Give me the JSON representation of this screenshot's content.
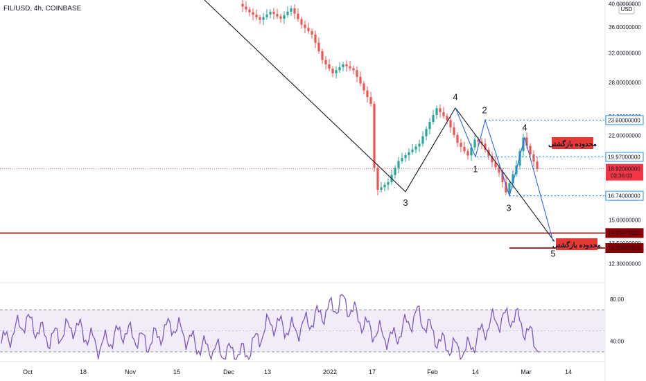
{
  "header": {
    "title": "FIL/USD, 4h, COINBASE",
    "currency_badge": "USD"
  },
  "colors": {
    "up": "#26a69a",
    "down": "#ef5350",
    "wave_black": "#131722",
    "wave_blue": "#2962ff",
    "level_dotted": "#2196f3",
    "red_level": "#8b0000",
    "current_price_bg": "#f23645",
    "rsi_line": "#7e57c2",
    "rsi_band": "#ede7f6"
  },
  "chart_data": {
    "type": "candlestick",
    "symbol": "FIL/USD",
    "timeframe": "4h",
    "exchange": "COINBASE",
    "y_scale": "log",
    "ylim": [
      11.5,
      40.2
    ],
    "x_ticks": [
      "Oct",
      "18",
      "Nov",
      "15",
      "Dec",
      "13",
      "2022",
      "17",
      "Feb",
      "14",
      "Mar",
      "14"
    ],
    "price_axis_labels": [
      "40.00000000",
      "36.00000000",
      "32.00000000",
      "28.00000000",
      "24.00000000",
      "22.00000000",
      "15.00000000",
      "13.50000000",
      "12.30000000"
    ],
    "price_anchors": [
      {
        "i": 0,
        "p": 40.0
      },
      {
        "i": 3,
        "p": 38.5
      },
      {
        "i": 6,
        "p": 37.2
      },
      {
        "i": 9,
        "p": 38.6
      },
      {
        "i": 12,
        "p": 37.4
      },
      {
        "i": 15,
        "p": 39.2
      },
      {
        "i": 18,
        "p": 36.4
      },
      {
        "i": 21,
        "p": 34.8
      },
      {
        "i": 24,
        "p": 31.0
      },
      {
        "i": 27,
        "p": 29.2
      },
      {
        "i": 30,
        "p": 30.4
      },
      {
        "i": 33,
        "p": 29.6
      },
      {
        "i": 36,
        "p": 27.0
      },
      {
        "i": 38,
        "p": 25.4
      },
      {
        "i": 39,
        "p": 19.0
      },
      {
        "i": 40,
        "p": 17.2
      },
      {
        "i": 43,
        "p": 17.8
      },
      {
        "i": 46,
        "p": 19.6
      },
      {
        "i": 49,
        "p": 20.4
      },
      {
        "i": 52,
        "p": 21.2
      },
      {
        "i": 55,
        "p": 23.4
      },
      {
        "i": 57,
        "p": 24.9
      },
      {
        "i": 60,
        "p": 23.6
      },
      {
        "i": 63,
        "p": 21.3
      },
      {
        "i": 66,
        "p": 20.1
      },
      {
        "i": 68,
        "p": 21.6
      },
      {
        "i": 70,
        "p": 21.2
      },
      {
        "i": 73,
        "p": 19.5
      },
      {
        "i": 75,
        "p": 18.6
      },
      {
        "i": 77,
        "p": 17.0
      },
      {
        "i": 80,
        "p": 19.2
      },
      {
        "i": 82,
        "p": 21.8
      },
      {
        "i": 84,
        "p": 20.2
      },
      {
        "i": 86,
        "p": 18.9
      }
    ],
    "levels": [
      {
        "price": 23.6,
        "label": "23.60000000",
        "style": "dotted-blue"
      },
      {
        "price": 19.97,
        "label": "19.97000000",
        "style": "dotted-blue"
      },
      {
        "price": 16.74,
        "label": "16.74000000",
        "style": "dotted-blue"
      },
      {
        "price": 14.13471557,
        "label": "14.13471557",
        "style": "solid-dark-red"
      },
      {
        "price": 13.20553319,
        "label": "13.20553319",
        "style": "solid-dark-red"
      }
    ],
    "current_price": {
      "price": 18.92,
      "label": "18.92000000",
      "countdown": "03:36:03"
    },
    "waves_black": [
      {
        "label": "3",
        "price": 17.05
      },
      {
        "label": "4",
        "price": 24.95
      }
    ],
    "waves_blue": [
      {
        "label": "1",
        "price": 19.97
      },
      {
        "label": "2",
        "price": 23.6
      },
      {
        "label": "3",
        "price": 16.74
      },
      {
        "label": "4",
        "price": 21.8
      },
      {
        "label": "5",
        "price": 13.6
      }
    ],
    "annotations": [
      "محدوده بازگشتی",
      "محدوده بازگشتی"
    ],
    "rsi": {
      "ylim": [
        22,
        92
      ],
      "upper_band": 70,
      "middle": 50,
      "lower_band": 30,
      "axis_labels": [
        "80.00",
        "40.00"
      ],
      "anchors": [
        {
          "i": 0,
          "v": 38
        },
        {
          "i": 4,
          "v": 60
        },
        {
          "i": 8,
          "v": 42
        },
        {
          "i": 12,
          "v": 55
        },
        {
          "i": 16,
          "v": 35
        },
        {
          "i": 20,
          "v": 50
        },
        {
          "i": 24,
          "v": 38
        },
        {
          "i": 28,
          "v": 56
        },
        {
          "i": 32,
          "v": 36
        },
        {
          "i": 36,
          "v": 30
        },
        {
          "i": 40,
          "v": 28
        },
        {
          "i": 44,
          "v": 58
        },
        {
          "i": 48,
          "v": 50
        },
        {
          "i": 52,
          "v": 65
        },
        {
          "i": 56,
          "v": 78
        },
        {
          "i": 60,
          "v": 52
        },
        {
          "i": 64,
          "v": 42
        },
        {
          "i": 68,
          "v": 66
        },
        {
          "i": 72,
          "v": 38
        },
        {
          "i": 76,
          "v": 30
        },
        {
          "i": 80,
          "v": 58
        },
        {
          "i": 84,
          "v": 64
        },
        {
          "i": 88,
          "v": 35
        }
      ]
    }
  }
}
